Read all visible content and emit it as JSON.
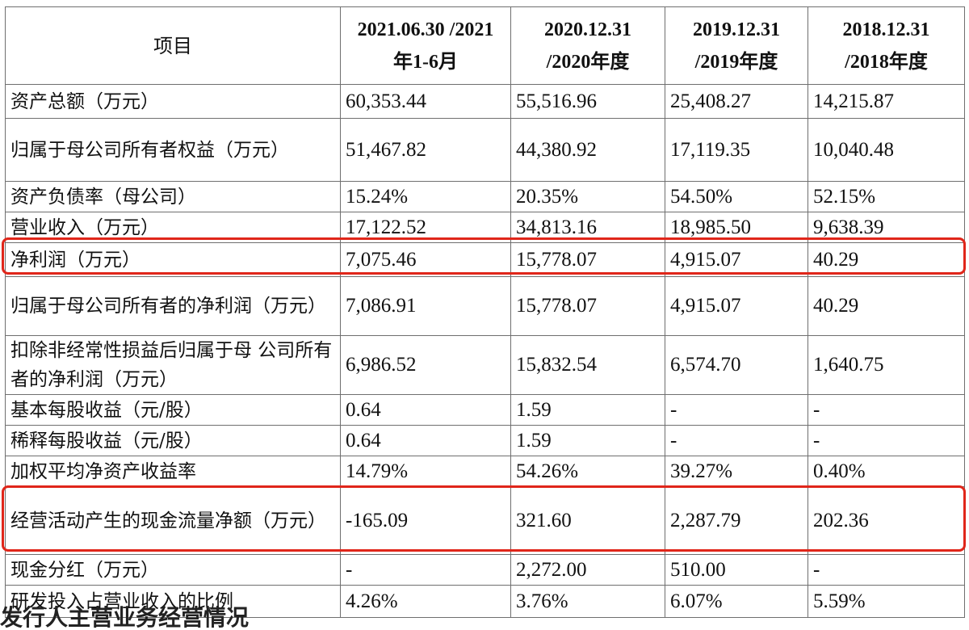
{
  "table": {
    "headers": [
      {
        "line1": "项目",
        "line2": ""
      },
      {
        "line1": "2021.06.30 /2021",
        "line2": "年1-6月"
      },
      {
        "line1": "2020.12.31",
        "line2": "/2020年度"
      },
      {
        "line1": "2019.12.31",
        "line2": "/2019年度"
      },
      {
        "line1": "2018.12.31",
        "line2": "/2018年度"
      }
    ],
    "rows": [
      {
        "label": "资产总额（万元）",
        "values": [
          "60,353.44",
          "55,516.96",
          "25,408.27",
          "14,215.87"
        ]
      },
      {
        "label": "归属于母公司所有者权益（万元）",
        "values": [
          "51,467.82",
          "44,380.92",
          "17,119.35",
          "10,040.48"
        ]
      },
      {
        "label": "资产负债率（母公司）",
        "values": [
          "15.24%",
          "20.35%",
          "54.50%",
          "52.15%"
        ]
      },
      {
        "label": "营业收入（万元）",
        "values": [
          "17,122.52",
          "34,813.16",
          "18,985.50",
          "9,638.39"
        ]
      },
      {
        "label": "净利润（万元）",
        "values": [
          "7,075.46",
          "15,778.07",
          "4,915.07",
          "40.29"
        ]
      },
      {
        "label": "归属于母公司所有者的净利润（万元）",
        "values": [
          "7,086.91",
          "15,778.07",
          "4,915.07",
          "40.29"
        ]
      },
      {
        "label": "扣除非经常性损益后归属于母 公司所有者的净利润（万元）",
        "values": [
          "6,986.52",
          "15,832.54",
          "6,574.70",
          "1,640.75"
        ]
      },
      {
        "label": "基本每股收益（元/股）",
        "values": [
          "0.64",
          "1.59",
          "-",
          "-"
        ]
      },
      {
        "label": "稀释每股收益（元/股）",
        "values": [
          "0.64",
          "1.59",
          "-",
          "-"
        ]
      },
      {
        "label": "加权平均净资产收益率",
        "values": [
          "14.79%",
          "54.26%",
          "39.27%",
          "0.40%"
        ]
      },
      {
        "label": "经营活动产生的现金流量净额（万元）",
        "values": [
          "-165.09",
          "321.60",
          "2,287.79",
          "202.36"
        ]
      },
      {
        "label": "现金分红（万元）",
        "values": [
          "-",
          "2,272.00",
          "510.00",
          "-"
        ]
      },
      {
        "label": "研发投入占营业收入的比例",
        "values": [
          "4.26%",
          "3.76%",
          "6.07%",
          "5.59%"
        ]
      }
    ]
  },
  "footer_partial_text": "发行人主营业务经营情况",
  "highlight_color": "#e0261a"
}
